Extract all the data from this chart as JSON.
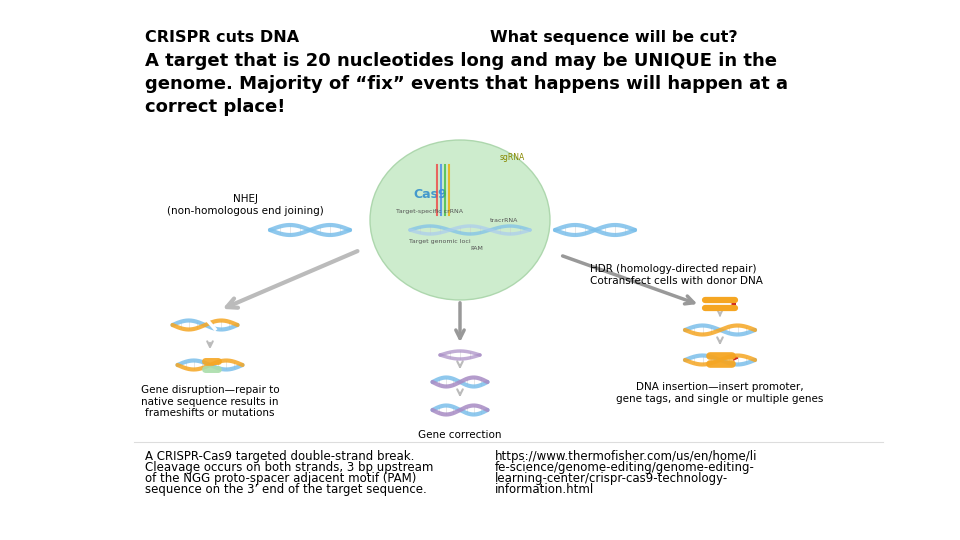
{
  "title_left": "CRISPR cuts DNA",
  "title_right": "What sequence will be cut?",
  "body_text": "A target that is 20 nucleotides long and may be UNIQUE in the\ngenome. Majority of “fix” events that happens will happen at a\ncorrect place!",
  "caption_left_lines": [
    "A CRISPR-Cas9 targeted double-strand break.",
    "Cleavage occurs on both strands, 3 bp upstream",
    "of the NGG proto-spacer adjacent motif (PAM)",
    "sequence on the 3’ end of the target sequence."
  ],
  "caption_right_lines": [
    "https://www.thermofisher.com/us/en/home/li",
    "fe-science/genome-editing/genome-editing-",
    "learning-center/crispr-cas9-technology-",
    "information.html"
  ],
  "nhej_label": "NHEJ\n(non-homologous end joining)",
  "hdr_label": "HDR (homology-directed repair)\nCotransfect cells with donor DNA",
  "gene_disruption_label": "Gene disruption—repair to\nnative sequence results in\nframeshifts or mutations",
  "gene_correction_label": "Gene correction",
  "dna_insertion_label": "DNA insertion—insert promoter,\ngene tags, and single or multiple genes",
  "cas9_label": "Cas9",
  "bg_color": "#ffffff",
  "title_fontsize": 11.5,
  "body_fontsize": 13,
  "caption_fontsize": 8.5,
  "diagram_label_fontsize": 7.5,
  "cas9_fontsize": 9,
  "color_dna_blue": "#7bbfea",
  "color_dna_orange": "#f5a623",
  "color_dna_purple": "#a78bc4",
  "color_dna_grey": "#9ab0c8",
  "color_green_blob": "#c8eac8",
  "color_green_blob_edge": "#a8d4a8",
  "color_cas9_text": "#4499cc",
  "color_arrow_grey": "#bbbbbb",
  "color_arrow_dark": "#999999",
  "color_orange_insert": "#f5a623"
}
